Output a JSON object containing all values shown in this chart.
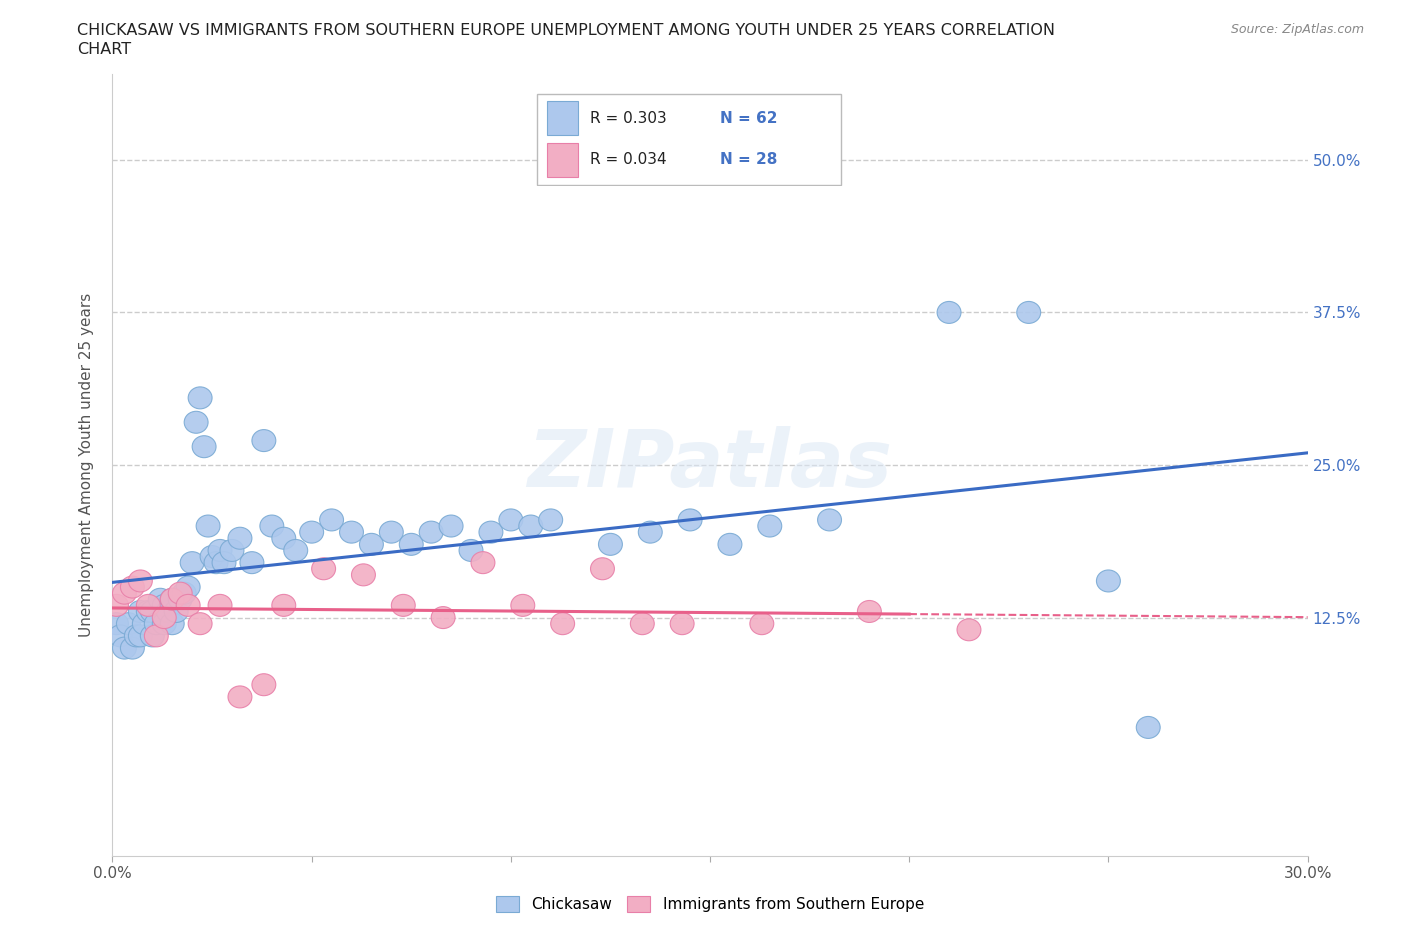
{
  "title_line1": "CHICKASAW VS IMMIGRANTS FROM SOUTHERN EUROPE UNEMPLOYMENT AMONG YOUTH UNDER 25 YEARS CORRELATION",
  "title_line2": "CHART",
  "source": "Source: ZipAtlas.com",
  "ylabel": "Unemployment Among Youth under 25 years",
  "xlim": [
    0.0,
    0.3
  ],
  "ylim": [
    -0.07,
    0.57
  ],
  "xticks": [
    0.0,
    0.05,
    0.1,
    0.15,
    0.2,
    0.25,
    0.3
  ],
  "ytick_vals": [
    0.125,
    0.25,
    0.375,
    0.5
  ],
  "ytick_labels": [
    "12.5%",
    "25.0%",
    "37.5%",
    "50.0%"
  ],
  "watermark": "ZIPatlas",
  "chickasaw_color": "#adc8ed",
  "immigrant_color": "#f2aec4",
  "chickasaw_edge": "#7aaad4",
  "immigrant_edge": "#e87fa8",
  "chickasaw_line_color": "#3a6bc4",
  "immigrant_line_color": "#e8608a",
  "chickasaw_R": "0.303",
  "chickasaw_N": "62",
  "immigrant_R": "0.034",
  "immigrant_N": "28",
  "legend_label_1": "Chickasaw",
  "legend_label_2": "Immigrants from Southern Europe",
  "stat_color": "#4472c4",
  "chickasaw_x": [
    0.001,
    0.002,
    0.003,
    0.004,
    0.005,
    0.006,
    0.007,
    0.007,
    0.008,
    0.009,
    0.01,
    0.01,
    0.011,
    0.012,
    0.013,
    0.013,
    0.014,
    0.015,
    0.015,
    0.016,
    0.017,
    0.018,
    0.019,
    0.02,
    0.021,
    0.022,
    0.023,
    0.024,
    0.025,
    0.026,
    0.027,
    0.028,
    0.03,
    0.032,
    0.035,
    0.038,
    0.04,
    0.043,
    0.046,
    0.05,
    0.055,
    0.06,
    0.065,
    0.07,
    0.075,
    0.08,
    0.085,
    0.09,
    0.095,
    0.1,
    0.105,
    0.11,
    0.125,
    0.135,
    0.145,
    0.155,
    0.165,
    0.18,
    0.21,
    0.23,
    0.25,
    0.26
  ],
  "chickasaw_y": [
    0.12,
    0.11,
    0.1,
    0.12,
    0.1,
    0.11,
    0.11,
    0.13,
    0.12,
    0.13,
    0.11,
    0.13,
    0.12,
    0.14,
    0.12,
    0.135,
    0.13,
    0.12,
    0.14,
    0.13,
    0.14,
    0.145,
    0.15,
    0.17,
    0.285,
    0.305,
    0.265,
    0.2,
    0.175,
    0.17,
    0.18,
    0.17,
    0.18,
    0.19,
    0.17,
    0.27,
    0.2,
    0.19,
    0.18,
    0.195,
    0.205,
    0.195,
    0.185,
    0.195,
    0.185,
    0.195,
    0.2,
    0.18,
    0.195,
    0.205,
    0.2,
    0.205,
    0.185,
    0.195,
    0.205,
    0.185,
    0.2,
    0.205,
    0.375,
    0.375,
    0.155,
    0.035
  ],
  "immigrant_x": [
    0.001,
    0.003,
    0.005,
    0.007,
    0.009,
    0.011,
    0.013,
    0.015,
    0.017,
    0.019,
    0.022,
    0.027,
    0.032,
    0.038,
    0.043,
    0.053,
    0.063,
    0.073,
    0.083,
    0.093,
    0.103,
    0.113,
    0.123,
    0.133,
    0.143,
    0.163,
    0.19,
    0.215
  ],
  "immigrant_y": [
    0.135,
    0.145,
    0.15,
    0.155,
    0.135,
    0.11,
    0.125,
    0.14,
    0.145,
    0.135,
    0.12,
    0.135,
    0.06,
    0.07,
    0.135,
    0.165,
    0.16,
    0.135,
    0.125,
    0.17,
    0.135,
    0.12,
    0.165,
    0.12,
    0.12,
    0.12,
    0.13,
    0.115
  ]
}
